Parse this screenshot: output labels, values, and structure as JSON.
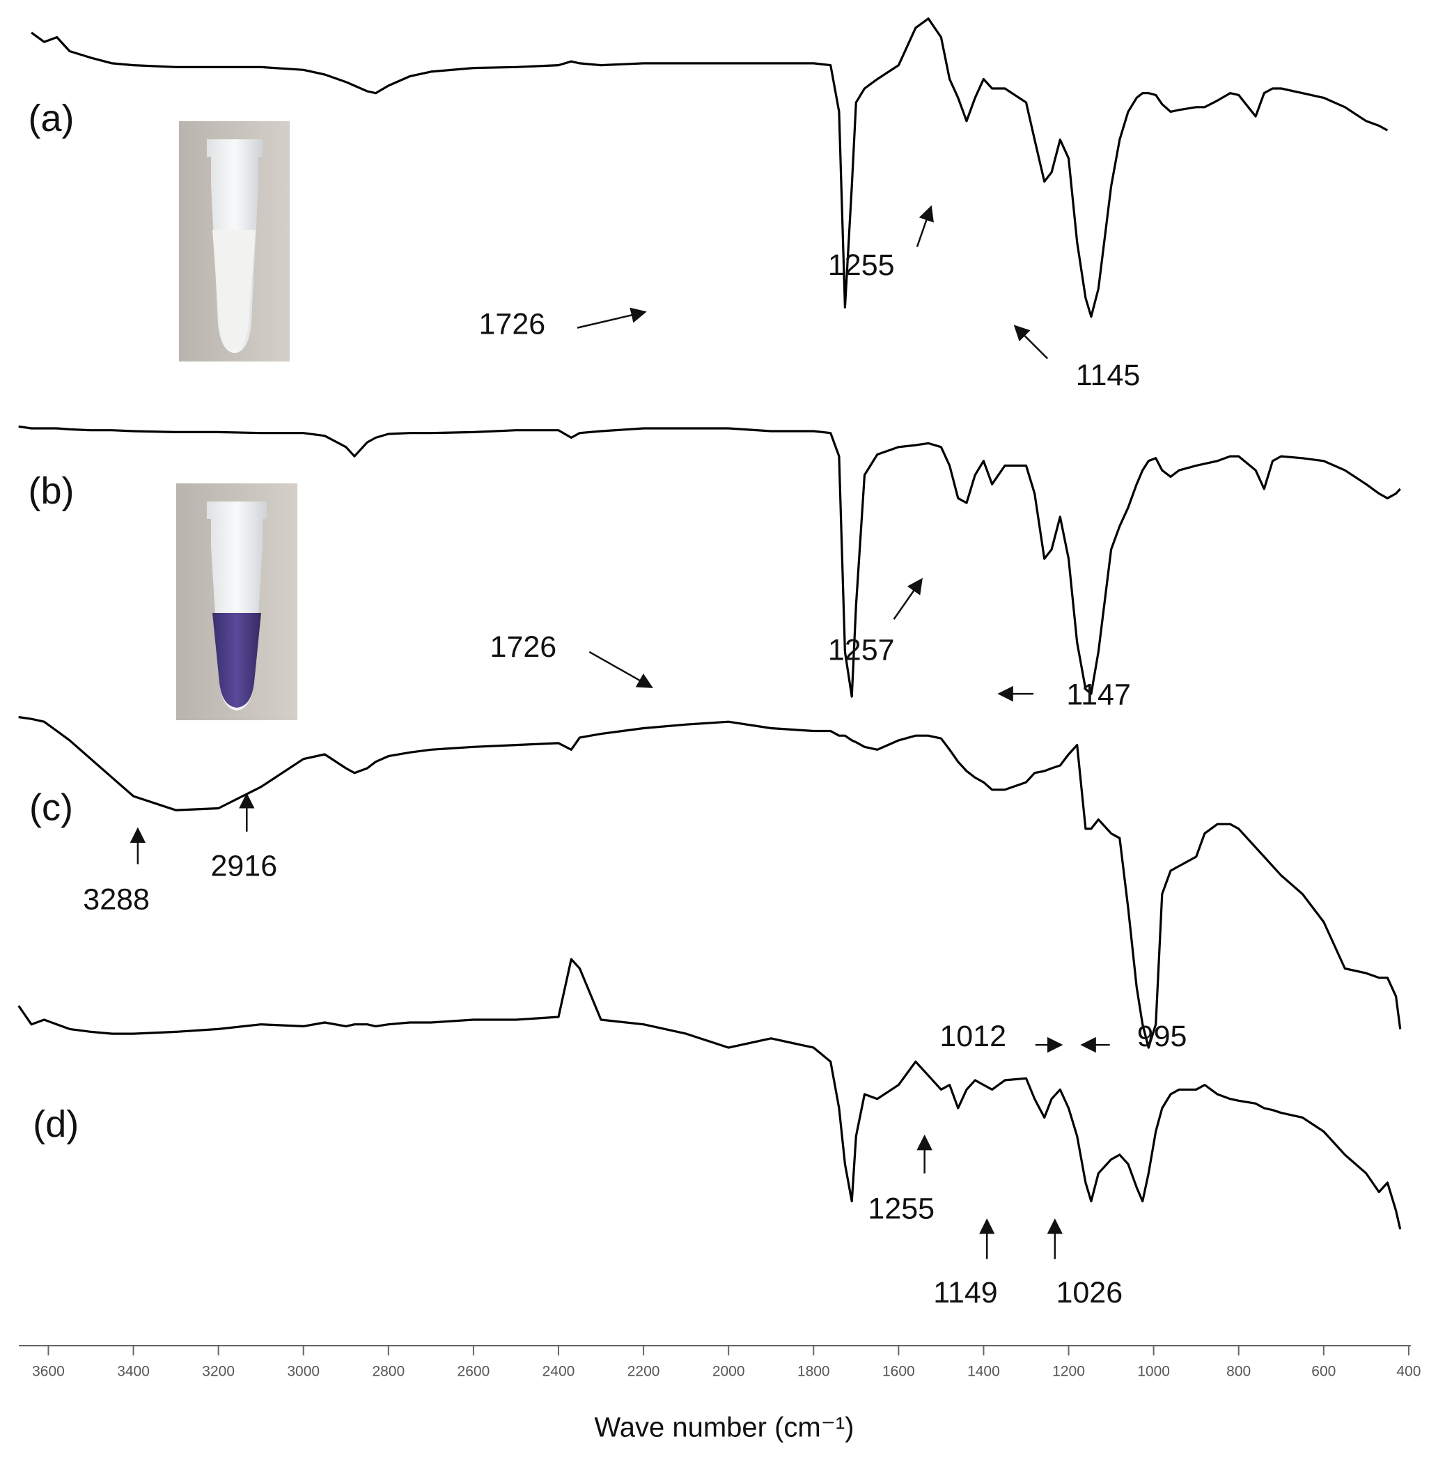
{
  "chart_data": {
    "type": "line",
    "x_label": "Wave number (cm⁻¹)",
    "x": [
      3670,
      3640,
      3610,
      3580,
      3550,
      3500,
      3450,
      3400,
      3300,
      3200,
      3100,
      3000,
      2950,
      2900,
      2880,
      2850,
      2830,
      2800,
      2750,
      2700,
      2600,
      2500,
      2400,
      2370,
      2350,
      2300,
      2200,
      2100,
      2000,
      1900,
      1800,
      1760,
      1740,
      1726,
      1710,
      1700,
      1680,
      1650,
      1600,
      1560,
      1530,
      1500,
      1480,
      1460,
      1440,
      1420,
      1400,
      1380,
      1350,
      1300,
      1280,
      1257,
      1240,
      1220,
      1200,
      1180,
      1160,
      1147,
      1130,
      1100,
      1080,
      1060,
      1040,
      1026,
      1012,
      995,
      980,
      960,
      940,
      900,
      880,
      850,
      820,
      800,
      760,
      740,
      720,
      700,
      650,
      600,
      550,
      500,
      470,
      450,
      430,
      420
    ],
    "xlim": [
      3670,
      400
    ],
    "xticks": [
      3600,
      3400,
      3200,
      3000,
      2800,
      2600,
      2400,
      2200,
      2000,
      1800,
      1600,
      1400,
      1200,
      1000,
      800,
      600,
      400
    ],
    "ylim": [
      0,
      140
    ],
    "series": [
      {
        "name": "(a)",
        "color": "#000000",
        "peaks": [
          1726,
          1255,
          1145
        ],
        "values": [
          null,
          136.5,
          135.5,
          136,
          134.5,
          133.8,
          133.2,
          133,
          132.8,
          132.8,
          132.8,
          132.5,
          132,
          131.2,
          130.8,
          130.2,
          130,
          130.8,
          131.8,
          132.3,
          132.7,
          132.8,
          133,
          133.4,
          133.2,
          133,
          133.2,
          133.2,
          133.2,
          133.2,
          133.2,
          133,
          128,
          107,
          120,
          129,
          130.5,
          131.5,
          133,
          137,
          138,
          136,
          131.5,
          129.5,
          127,
          129.5,
          131.5,
          130.5,
          130.5,
          129,
          125,
          120.5,
          121.5,
          125,
          123,
          114,
          108,
          106,
          109,
          120,
          125,
          128,
          129.5,
          130,
          130,
          129.8,
          128.8,
          128,
          128.2,
          128.5,
          128.5,
          129.2,
          130,
          129.8,
          127.5,
          130,
          130.5,
          130.5,
          130,
          129.5,
          128.5,
          127,
          126.5,
          126,
          null,
          null
        ]
      },
      {
        "name": "(b)",
        "color": "#000000",
        "peaks": [
          1726,
          1257,
          1147
        ],
        "values": [
          94.2,
          94,
          94,
          94,
          93.9,
          93.8,
          93.8,
          93.7,
          93.6,
          93.6,
          93.5,
          93.5,
          93.2,
          92,
          91,
          92.5,
          93,
          93.4,
          93.5,
          93.5,
          93.6,
          93.8,
          93.8,
          93,
          93.5,
          93.7,
          94,
          94,
          94,
          93.7,
          93.7,
          93.5,
          91,
          70,
          65.2,
          75,
          89,
          91.2,
          92,
          92.2,
          92.4,
          92,
          90,
          86.5,
          86,
          89,
          90.5,
          88,
          90,
          90,
          87,
          80,
          81,
          84.5,
          80,
          71,
          66,
          65.5,
          70,
          81,
          83.5,
          85.5,
          88,
          89.5,
          90.5,
          90.8,
          89.5,
          88.8,
          89.5,
          90,
          90.2,
          90.5,
          91,
          91,
          89.5,
          87.5,
          90.5,
          91,
          90.8,
          90.5,
          89.5,
          88,
          87,
          86.5,
          87,
          87.5
        ]
      },
      {
        "name": "(c)",
        "color": "#000000",
        "peaks": [
          3288,
          2916,
          1012,
          995
        ],
        "values": [
          63,
          62.8,
          62.5,
          61.5,
          60.5,
          58.5,
          56.5,
          54.5,
          53,
          53.2,
          55.5,
          58.5,
          59,
          57.5,
          57,
          57.5,
          58.2,
          58.8,
          59.2,
          59.5,
          59.8,
          60,
          60.2,
          59.5,
          60.8,
          61.2,
          61.8,
          62.2,
          62.5,
          61.8,
          61.5,
          61.5,
          61,
          61,
          60.5,
          60.3,
          59.8,
          59.5,
          60.5,
          61,
          61,
          60.7,
          59.5,
          58.2,
          57.2,
          56.5,
          56,
          55.2,
          55.2,
          56,
          57,
          57.2,
          57.5,
          57.8,
          59,
          60,
          51,
          51,
          52,
          50.5,
          50,
          42.5,
          34,
          30,
          27.5,
          30,
          44,
          46.5,
          47,
          48,
          50.5,
          51.5,
          51.5,
          51,
          49,
          48,
          47,
          46,
          44,
          41,
          36,
          35.5,
          35,
          35,
          33,
          29.5
        ]
      },
      {
        "name": "(d)",
        "color": "#000000",
        "peaks": [
          1255,
          1149,
          1026
        ],
        "values": [
          32,
          30,
          30.5,
          30,
          29.5,
          29.2,
          29,
          29,
          29.2,
          29.5,
          30,
          29.8,
          30.2,
          29.8,
          30,
          30,
          29.8,
          30,
          30.2,
          30.2,
          30.5,
          30.5,
          30.8,
          37,
          36,
          30.5,
          30,
          29,
          27.5,
          28.5,
          27.5,
          26,
          21,
          15,
          11,
          18,
          22.5,
          22,
          23.5,
          26,
          24.5,
          23,
          23.5,
          21,
          23,
          24,
          23.5,
          23,
          24,
          24.2,
          22,
          20,
          22,
          23,
          21,
          18,
          13,
          11,
          14,
          15.5,
          16,
          15,
          12.5,
          11,
          14,
          18.5,
          21,
          22.5,
          23,
          23,
          23.5,
          22.5,
          22,
          21.8,
          21.5,
          21,
          20.8,
          20.5,
          20,
          18.5,
          16,
          14,
          12,
          13,
          10,
          8
        ]
      }
    ]
  }
}
